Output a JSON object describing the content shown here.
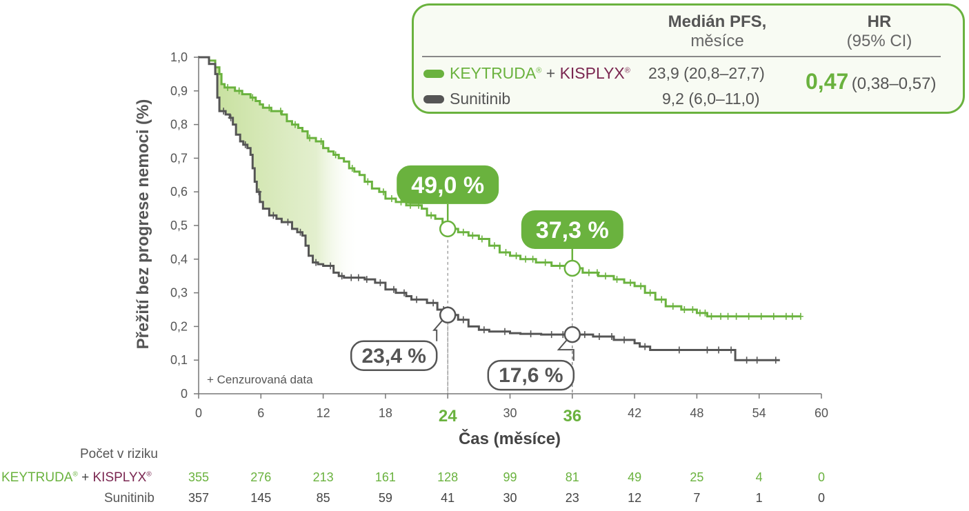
{
  "chart_data": {
    "type": "line",
    "xlabel": "Čas (měsíce)",
    "ylabel": "Přežití bez progrese nemoci (%)",
    "xlim": [
      0,
      60
    ],
    "ylim": [
      0,
      1
    ],
    "x_ticks": [
      "0",
      "6",
      "12",
      "18",
      "24",
      "30",
      "36",
      "42",
      "48",
      "54",
      "60"
    ],
    "y_ticks": [
      "0",
      "0,1",
      "0,2",
      "0,3",
      "0,4",
      "0,5",
      "0,6",
      "0,7",
      "0,8",
      "0,9",
      "1,0"
    ],
    "highlight_ticks": [
      "24",
      "36"
    ],
    "censor_note": "+ Cenzurovaná data",
    "series": [
      {
        "name": "KEYTRUDA® + KISPLYX®",
        "color": "#6ab23e",
        "points": [
          [
            0,
            1.0
          ],
          [
            1,
            0.99
          ],
          [
            1.6,
            0.97
          ],
          [
            2,
            0.95
          ],
          [
            2.2,
            0.92
          ],
          [
            2.5,
            0.91
          ],
          [
            3,
            0.91
          ],
          [
            3.5,
            0.9
          ],
          [
            4.2,
            0.89
          ],
          [
            5,
            0.88
          ],
          [
            5.5,
            0.87
          ],
          [
            5.9,
            0.86
          ],
          [
            6.2,
            0.85
          ],
          [
            7,
            0.84
          ],
          [
            8,
            0.83
          ],
          [
            8.5,
            0.81
          ],
          [
            9,
            0.8
          ],
          [
            9.6,
            0.79
          ],
          [
            10,
            0.78
          ],
          [
            10.5,
            0.76
          ],
          [
            11.3,
            0.75
          ],
          [
            12,
            0.73
          ],
          [
            12.5,
            0.72
          ],
          [
            13,
            0.71
          ],
          [
            13.5,
            0.7
          ],
          [
            14,
            0.69
          ],
          [
            14.5,
            0.67
          ],
          [
            15,
            0.66
          ],
          [
            15.5,
            0.65
          ],
          [
            16,
            0.63
          ],
          [
            16.7,
            0.61
          ],
          [
            17.4,
            0.6
          ],
          [
            18,
            0.58
          ],
          [
            19,
            0.57
          ],
          [
            20,
            0.56
          ],
          [
            21.5,
            0.55
          ],
          [
            22,
            0.53
          ],
          [
            22.8,
            0.52
          ],
          [
            23.5,
            0.5
          ],
          [
            24,
            0.49
          ],
          [
            25,
            0.48
          ],
          [
            26,
            0.47
          ],
          [
            27,
            0.46
          ],
          [
            28,
            0.44
          ],
          [
            29,
            0.42
          ],
          [
            30,
            0.41
          ],
          [
            31,
            0.4
          ],
          [
            32.5,
            0.39
          ],
          [
            34,
            0.38
          ],
          [
            36,
            0.373
          ],
          [
            37,
            0.36
          ],
          [
            38.5,
            0.35
          ],
          [
            40,
            0.34
          ],
          [
            41,
            0.33
          ],
          [
            42,
            0.32
          ],
          [
            43,
            0.3
          ],
          [
            44,
            0.28
          ],
          [
            45,
            0.26
          ],
          [
            46.5,
            0.25
          ],
          [
            48,
            0.24
          ],
          [
            49,
            0.23
          ],
          [
            58,
            0.23
          ]
        ],
        "censors": [
          2.8,
          3.9,
          5.2,
          6.8,
          7.9,
          9.3,
          10.7,
          11.8,
          13.2,
          14.8,
          16.3,
          17.8,
          18.6,
          19.5,
          20.4,
          21.2,
          22.4,
          24.6,
          25.5,
          26.4,
          27.3,
          28.5,
          29.6,
          30.6,
          31.5,
          32.2,
          33.4,
          34.8,
          35.5,
          37.6,
          38.4,
          39.2,
          40.3,
          41.6,
          42.6,
          43.5,
          44.6,
          45.7,
          46.8,
          47.6,
          48.3,
          48.8,
          49.4,
          50.3,
          51.0,
          51.8,
          53.0,
          54.2,
          55.4,
          56.6,
          57.2,
          58.0
        ]
      },
      {
        "name": "Sunitinib",
        "color": "#555555",
        "points": [
          [
            0,
            1.0
          ],
          [
            1,
            0.98
          ],
          [
            1.6,
            0.95
          ],
          [
            1.8,
            0.88
          ],
          [
            2,
            0.84
          ],
          [
            2.6,
            0.83
          ],
          [
            3,
            0.82
          ],
          [
            3.3,
            0.8
          ],
          [
            3.6,
            0.77
          ],
          [
            4,
            0.75
          ],
          [
            4.3,
            0.74
          ],
          [
            4.7,
            0.73
          ],
          [
            5,
            0.71
          ],
          [
            5.2,
            0.67
          ],
          [
            5.4,
            0.63
          ],
          [
            5.6,
            0.6
          ],
          [
            5.9,
            0.57
          ],
          [
            6.2,
            0.55
          ],
          [
            6.8,
            0.53
          ],
          [
            7.5,
            0.52
          ],
          [
            8,
            0.51
          ],
          [
            9,
            0.49
          ],
          [
            9.5,
            0.48
          ],
          [
            10,
            0.47
          ],
          [
            10.3,
            0.44
          ],
          [
            10.6,
            0.41
          ],
          [
            11,
            0.39
          ],
          [
            11.5,
            0.385
          ],
          [
            12,
            0.38
          ],
          [
            13,
            0.36
          ],
          [
            13.5,
            0.35
          ],
          [
            14,
            0.345
          ],
          [
            16,
            0.34
          ],
          [
            17,
            0.33
          ],
          [
            18,
            0.31
          ],
          [
            19,
            0.3
          ],
          [
            20,
            0.29
          ],
          [
            20.5,
            0.28
          ],
          [
            22,
            0.27
          ],
          [
            23,
            0.25
          ],
          [
            24,
            0.234
          ],
          [
            25,
            0.22
          ],
          [
            26,
            0.2
          ],
          [
            27,
            0.19
          ],
          [
            28,
            0.185
          ],
          [
            30,
            0.18
          ],
          [
            31,
            0.178
          ],
          [
            33,
            0.176
          ],
          [
            36,
            0.176
          ],
          [
            38,
            0.17
          ],
          [
            40,
            0.16
          ],
          [
            42,
            0.15
          ],
          [
            42.5,
            0.14
          ],
          [
            43.5,
            0.13
          ],
          [
            51.5,
            0.13
          ],
          [
            51.7,
            0.1
          ],
          [
            56,
            0.1
          ]
        ],
        "censors": [
          2.4,
          3.1,
          4.5,
          5.8,
          7.2,
          8.6,
          9.8,
          11.3,
          12.7,
          13.8,
          14.7,
          15.4,
          16.2,
          17.5,
          18.8,
          19.8,
          21.0,
          22.6,
          23.6,
          25.5,
          27.5,
          29.5,
          32.0,
          34.0,
          35.1,
          37.2,
          38.6,
          39.8,
          41.0,
          43.0,
          46.3,
          49.0,
          50.1,
          51.3,
          52.8,
          53.8,
          55.6
        ]
      }
    ],
    "annotations": [
      {
        "series": "KEYTRUDA® + KISPLYX®",
        "x": 24,
        "y": 0.49,
        "label": "49,0 %"
      },
      {
        "series": "KEYTRUDA® + KISPLYX®",
        "x": 36,
        "y": 0.373,
        "label": "37,3 %"
      },
      {
        "series": "Sunitinib",
        "x": 24,
        "y": 0.234,
        "label": "23,4 %"
      },
      {
        "series": "Sunitinib",
        "x": 36,
        "y": 0.176,
        "label": "17,6 %"
      }
    ]
  },
  "legend": {
    "header_median": "Medián PFS,",
    "header_median_sub": "měsíce",
    "header_hr": "HR",
    "header_hr_sub": "(95% CI)",
    "row1_name_a": "KEYTRUDA",
    "row1_plus": " + ",
    "row1_name_b": "KISPLYX",
    "reg": "®",
    "row1_median": "23,9 (20,8–27,7)",
    "row2_name": "Sunitinib",
    "row2_median": "9,2 (6,0–11,0)",
    "hr_value": "0,47",
    "hr_ci": "(0,38–0,57)",
    "colors": {
      "green": "#6ab23e",
      "gray": "#555555",
      "magenta": "#7a2650"
    }
  },
  "risk_table": {
    "title": "Počet v riziku",
    "row1_label_a": "KEYTRUDA",
    "row1_label_plus": " + ",
    "row1_label_b": "KISPLYX",
    "row2_label": "Sunitinib",
    "row1_values": [
      "355",
      "276",
      "213",
      "161",
      "128",
      "99",
      "81",
      "49",
      "25",
      "4",
      "0"
    ],
    "row2_values": [
      "357",
      "145",
      "85",
      "59",
      "41",
      "30",
      "23",
      "12",
      "7",
      "1",
      "0"
    ]
  }
}
